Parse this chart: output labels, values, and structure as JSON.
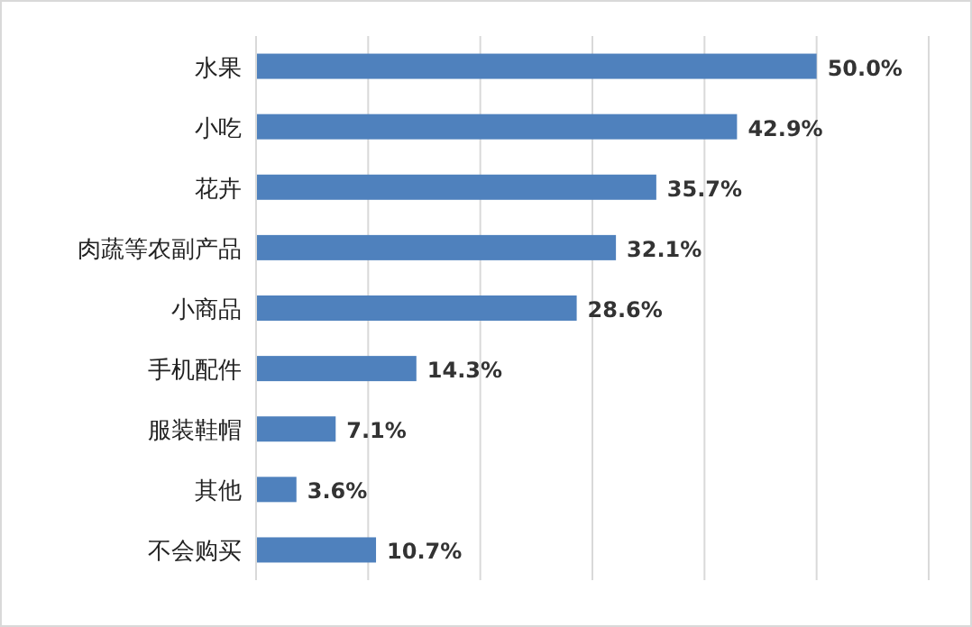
{
  "chart_data": {
    "type": "bar",
    "orientation": "horizontal",
    "categories": [
      "水果",
      "小吃",
      "花卉",
      "肉蔬等农副产品",
      "小商品",
      "手机配件",
      "服装鞋帽",
      "其他",
      "不会购买"
    ],
    "values": [
      50.0,
      42.9,
      35.7,
      32.1,
      28.6,
      14.3,
      7.1,
      3.6,
      10.7
    ],
    "value_labels": [
      "50.0%",
      "42.9%",
      "35.7%",
      "32.1%",
      "28.6%",
      "14.3%",
      "7.1%",
      "3.6%",
      "10.7%"
    ],
    "color": "#4f81bd",
    "xlim": [
      0,
      60
    ],
    "xticks": [
      {
        "value": 0,
        "label": null
      },
      {
        "value": 10,
        "label": null
      },
      {
        "value": 20,
        "label": null
      },
      {
        "value": 30,
        "label": null
      },
      {
        "value": 40,
        "label": null
      },
      {
        "value": 50,
        "label": null
      },
      {
        "value": 60,
        "label": null
      }
    ],
    "grid": "x",
    "tick_labels": "y"
  }
}
